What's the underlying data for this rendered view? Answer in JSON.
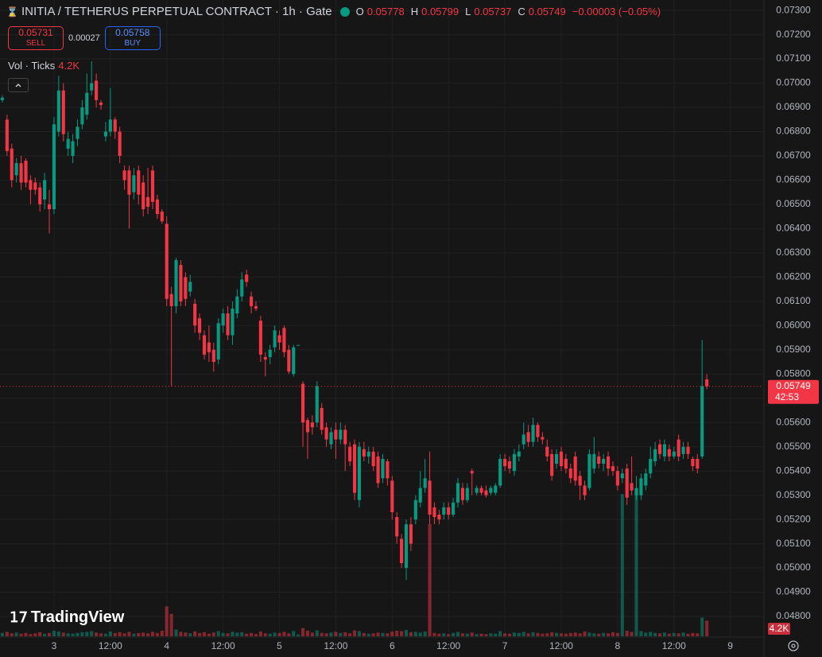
{
  "chart_data": {
    "type": "candlestick",
    "title": "INITIA / TETHERUS PERPETUAL CONTRACT · 1h · Gate",
    "ohlc_labels": [
      "O",
      "H",
      "L",
      "C"
    ],
    "change_label": "−0.00003 (−0.05%)",
    "sell_price": "0.05731",
    "sell_label": "SELL",
    "spread": "0.00027",
    "buy_price": "0.05758",
    "buy_label": "BUY",
    "volume_legend": "Vol · Ticks",
    "last_volume_label": "4.2K",
    "countdown": "42:53",
    "logo": "TradingView",
    "up_color": "#089981",
    "down_color": "#f23645",
    "grid": true,
    "x": [
      -11,
      -10,
      -9,
      -8,
      -7,
      -6,
      -5,
      -4,
      -3,
      -2,
      -1,
      0,
      1,
      2,
      3,
      4,
      5,
      6,
      7,
      8,
      9,
      10,
      11,
      12,
      13,
      14,
      15,
      16,
      17,
      18,
      19,
      20,
      21,
      22,
      23,
      24,
      25,
      26,
      27,
      28,
      29,
      30,
      31,
      32,
      33,
      34,
      35,
      36,
      37,
      38,
      39,
      40,
      41,
      42,
      43,
      44,
      45,
      46,
      47,
      48,
      49,
      50,
      51,
      52,
      53,
      54,
      55,
      56,
      57,
      58,
      59,
      60,
      61,
      62,
      63,
      64,
      65,
      66,
      67,
      68,
      69,
      70,
      71,
      72,
      73,
      74,
      75,
      76,
      77,
      78,
      79,
      80,
      81,
      82,
      83,
      84,
      85,
      86,
      87,
      88,
      89,
      90,
      91,
      92,
      93,
      94,
      95,
      96,
      97,
      98,
      99,
      100,
      101,
      102,
      103,
      104,
      105,
      106,
      107,
      108,
      109,
      110,
      111,
      112,
      113,
      114,
      115,
      116,
      117,
      118,
      119,
      120,
      121,
      122,
      123,
      124,
      125,
      126,
      127,
      128,
      129,
      130,
      131,
      132,
      133,
      134,
      135,
      136,
      137,
      138,
      139
    ],
    "open": [
      0.0693,
      0.0685,
      0.0673,
      0.0662,
      0.0667,
      0.0668,
      0.066,
      0.0659,
      0.0657,
      0.0652,
      0.065,
      0.0648,
      0.068,
      0.0697,
      0.0673,
      0.067,
      0.0677,
      0.0683,
      0.0687,
      0.0697,
      0.0701,
      0.0692,
      0.0678,
      0.068,
      0.0685,
      0.068,
      0.0664,
      0.0664,
      0.0655,
      0.0664,
      0.0659,
      0.0653,
      0.0664,
      0.0652,
      0.0647,
      0.0642,
      0.0613,
      0.0608,
      0.0625,
      0.062,
      0.0614,
      0.0609,
      0.0603,
      0.0596,
      0.0593,
      0.059,
      0.0586,
      0.06,
      0.0605,
      0.0596,
      0.0605,
      0.0612,
      0.0621,
      0.0612,
      0.0608,
      0.0602,
      0.0587,
      0.0587,
      0.0591,
      0.0596,
      0.0599,
      0.059,
      0.058,
      0.0592,
      0.0576,
      0.0561,
      0.056,
      0.056,
      0.0566,
      0.0558,
      0.0551,
      0.0557,
      0.0553,
      0.0557,
      0.055,
      0.0551,
      0.0528,
      0.0549,
      0.0546,
      0.0548,
      0.0546,
      0.0537,
      0.0544,
      0.0536,
      0.0521,
      0.0512,
      0.05,
      0.0518,
      0.052,
      0.0527,
      0.0533,
      0.0536,
      0.0525,
      0.0522,
      0.0522,
      0.0525,
      0.0522,
      0.0527,
      0.0533,
      0.0528,
      0.054,
      0.0531,
      0.0533,
      0.0532,
      0.0531,
      0.0531,
      0.0534,
      0.0545,
      0.0544,
      0.054,
      0.0546,
      0.0551,
      0.0556,
      0.0552,
      0.0559,
      0.0554,
      0.055,
      0.0547,
      0.0543,
      0.0548,
      0.0545,
      0.0541,
      0.0546,
      0.0538,
      0.0534,
      0.0533,
      0.0541,
      0.0546,
      0.0543,
      0.0546,
      0.0542,
      0.054,
      0.0537,
      0.0541,
      0.0535,
      0.053,
      0.053,
      0.0534,
      0.0539,
      0.0544,
      0.0551,
      0.0546,
      0.0549,
      0.0546,
      0.0553,
      0.0547,
      0.055,
      0.0545,
      0.0545,
      0.0546,
      0.05778
    ],
    "high": [
      0.0695,
      0.0687,
      0.0675,
      0.0669,
      0.067,
      0.0669,
      0.0662,
      0.0661,
      0.0659,
      0.0663,
      0.0656,
      0.0686,
      0.0703,
      0.07,
      0.068,
      0.0679,
      0.0685,
      0.0693,
      0.0704,
      0.0709,
      0.0704,
      0.0693,
      0.0684,
      0.0698,
      0.0686,
      0.0682,
      0.0666,
      0.0666,
      0.0665,
      0.0666,
      0.0662,
      0.0665,
      0.0666,
      0.0654,
      0.0648,
      0.0645,
      0.0616,
      0.0628,
      0.0627,
      0.0622,
      0.0621,
      0.0611,
      0.0605,
      0.0598,
      0.06,
      0.0593,
      0.0603,
      0.0607,
      0.0608,
      0.061,
      0.0615,
      0.0622,
      0.0623,
      0.0614,
      0.061,
      0.0604,
      0.0589,
      0.0592,
      0.06,
      0.0598,
      0.06,
      0.0592,
      0.0592,
      0.0592,
      0.0577,
      0.0562,
      0.0563,
      0.0577,
      0.0568,
      0.056,
      0.0558,
      0.056,
      0.056,
      0.0559,
      0.0552,
      0.0553,
      0.0552,
      0.0552,
      0.055,
      0.055,
      0.0548,
      0.0547,
      0.0545,
      0.0538,
      0.0523,
      0.0514,
      0.052,
      0.0521,
      0.053,
      0.054,
      0.0545,
      0.0548,
      0.0527,
      0.0524,
      0.0527,
      0.0527,
      0.0529,
      0.0537,
      0.0535,
      0.0535,
      0.0541,
      0.0534,
      0.0534,
      0.0534,
      0.0534,
      0.0535,
      0.0547,
      0.0547,
      0.0546,
      0.0549,
      0.0551,
      0.056,
      0.0559,
      0.0562,
      0.056,
      0.0556,
      0.0553,
      0.0549,
      0.0549,
      0.055,
      0.0547,
      0.0543,
      0.0548,
      0.054,
      0.0536,
      0.0549,
      0.0554,
      0.0548,
      0.0547,
      0.0548,
      0.0544,
      0.0542,
      0.0541,
      0.0543,
      0.0546,
      0.0538,
      0.0539,
      0.0541,
      0.055,
      0.0552,
      0.0553,
      0.0553,
      0.0551,
      0.055,
      0.0555,
      0.0552,
      0.0552,
      0.0546,
      0.0547,
      0.0594,
      0.05799
    ],
    "low": [
      0.0692,
      0.067,
      0.0657,
      0.0659,
      0.0656,
      0.0657,
      0.065,
      0.0654,
      0.0647,
      0.0648,
      0.0638,
      0.0646,
      0.0678,
      0.0676,
      0.067,
      0.0667,
      0.0674,
      0.0681,
      0.0685,
      0.0695,
      0.069,
      0.0689,
      0.0676,
      0.0678,
      0.0677,
      0.0667,
      0.0656,
      0.064,
      0.0652,
      0.065,
      0.0645,
      0.0646,
      0.0648,
      0.0644,
      0.0642,
      0.0608,
      0.0575,
      0.0605,
      0.0608,
      0.0608,
      0.0612,
      0.0597,
      0.0594,
      0.0586,
      0.0585,
      0.0581,
      0.0584,
      0.0597,
      0.0594,
      0.0592,
      0.0603,
      0.061,
      0.0616,
      0.0605,
      0.0606,
      0.0585,
      0.0579,
      0.0584,
      0.0589,
      0.059,
      0.0587,
      0.058,
      0.0579,
      0.0592,
      0.055,
      0.0545,
      0.0555,
      0.0558,
      0.0555,
      0.055,
      0.0549,
      0.0545,
      0.0551,
      0.054,
      0.0542,
      0.0528,
      0.0525,
      0.0544,
      0.0543,
      0.054,
      0.0533,
      0.0535,
      0.0534,
      0.052,
      0.051,
      0.05,
      0.0495,
      0.0507,
      0.0518,
      0.0525,
      0.0531,
      0.0518,
      0.0518,
      0.0518,
      0.052,
      0.052,
      0.0521,
      0.0525,
      0.0526,
      0.0527,
      0.053,
      0.053,
      0.053,
      0.0529,
      0.053,
      0.053,
      0.0533,
      0.054,
      0.0539,
      0.0538,
      0.0544,
      0.0549,
      0.055,
      0.055,
      0.0552,
      0.0551,
      0.0544,
      0.0536,
      0.0541,
      0.054,
      0.0539,
      0.0535,
      0.0534,
      0.0528,
      0.0528,
      0.0532,
      0.0539,
      0.0541,
      0.054,
      0.0538,
      0.0538,
      0.0532,
      0.0535,
      0.0526,
      0.053,
      0.0528,
      0.0528,
      0.0532,
      0.0537,
      0.0542,
      0.0545,
      0.0544,
      0.0544,
      0.0545,
      0.0544,
      0.0545,
      0.0545,
      0.054,
      0.0539,
      0.0545,
      0.05737
    ],
    "close": [
      0.0694,
      0.0672,
      0.066,
      0.0667,
      0.0659,
      0.0659,
      0.0656,
      0.0656,
      0.065,
      0.066,
      0.0648,
      0.0683,
      0.0697,
      0.0679,
      0.0677,
      0.0676,
      0.0682,
      0.069,
      0.0696,
      0.07,
      0.0693,
      0.0691,
      0.068,
      0.0685,
      0.068,
      0.067,
      0.066,
      0.0654,
      0.0662,
      0.0654,
      0.0648,
      0.0649,
      0.0651,
      0.0646,
      0.0643,
      0.0611,
      0.0608,
      0.0627,
      0.061,
      0.0611,
      0.0618,
      0.06,
      0.0597,
      0.0588,
      0.0589,
      0.0585,
      0.0601,
      0.0605,
      0.0596,
      0.0607,
      0.0612,
      0.0619,
      0.0618,
      0.0608,
      0.0607,
      0.0588,
      0.0586,
      0.059,
      0.0598,
      0.0593,
      0.0589,
      0.0581,
      0.0591,
      0.0592,
      0.056,
      0.0556,
      0.0558,
      0.0575,
      0.0557,
      0.0553,
      0.0556,
      0.0553,
      0.0557,
      0.0551,
      0.0544,
      0.0531,
      0.055,
      0.0546,
      0.0548,
      0.0542,
      0.0535,
      0.0545,
      0.0537,
      0.0523,
      0.0513,
      0.0502,
      0.0518,
      0.051,
      0.0528,
      0.0533,
      0.0537,
      0.0522,
      0.0521,
      0.052,
      0.0525,
      0.0522,
      0.0527,
      0.0535,
      0.0528,
      0.0533,
      0.0539,
      0.0533,
      0.0531,
      0.053,
      0.0533,
      0.0534,
      0.0545,
      0.0542,
      0.0541,
      0.0547,
      0.0548,
      0.0555,
      0.0552,
      0.0559,
      0.0554,
      0.0553,
      0.0546,
      0.0538,
      0.0547,
      0.0542,
      0.0541,
      0.0537,
      0.0536,
      0.0534,
      0.053,
      0.0547,
      0.0547,
      0.0543,
      0.0545,
      0.0541,
      0.054,
      0.0534,
      0.0539,
      0.0529,
      0.0532,
      0.0533,
      0.0537,
      0.0539,
      0.0545,
      0.0549,
      0.0547,
      0.0551,
      0.0546,
      0.0548,
      0.0546,
      0.055,
      0.0547,
      0.0542,
      0.0541,
      0.0575,
      0.05749
    ],
    "volume": [
      900,
      1200,
      800,
      1000,
      700,
      900,
      600,
      800,
      1100,
      700,
      900,
      1500,
      1300,
      1000,
      800,
      700,
      900,
      1100,
      1200,
      1400,
      1000,
      800,
      700,
      1300,
      900,
      1100,
      800,
      1200,
      700,
      900,
      1000,
      800,
      1200,
      900,
      1500,
      8000,
      6000,
      1800,
      1200,
      1000,
      800,
      1300,
      900,
      1100,
      700,
      1000,
      1400,
      900,
      800,
      1200,
      1000,
      1100,
      700,
      900,
      600,
      1300,
      800,
      700,
      1000,
      900,
      1200,
      800,
      1400,
      500,
      2200,
      1500,
      1000,
      1600,
      900,
      800,
      1000,
      1200,
      900,
      1100,
      800,
      1600,
      1400,
      900,
      700,
      800,
      1000,
      900,
      800,
      1300,
      1500,
      1400,
      1700,
      1100,
      1200,
      1000,
      1300,
      30000,
      900,
      700,
      800,
      600,
      900,
      1200,
      800,
      700,
      1000,
      600,
      700,
      600,
      800,
      700,
      1400,
      800,
      700,
      1000,
      900,
      1200,
      800,
      1100,
      900,
      700,
      800,
      1100,
      900,
      800,
      700,
      900,
      1000,
      800,
      1300,
      1000,
      800,
      700,
      900,
      800,
      1100,
      900,
      38000,
      1500,
      1200,
      38000,
      1400,
      1000,
      1200,
      900,
      800,
      1000,
      700,
      900,
      800,
      1000,
      700,
      900,
      800,
      5000,
      4200
    ],
    "xlim": [
      -11.5,
      151
    ],
    "xticks": [
      {
        "value": 0,
        "label": "3"
      },
      {
        "value": 12,
        "label": "12:00"
      },
      {
        "value": 24,
        "label": "4"
      },
      {
        "value": 36,
        "label": "12:00"
      },
      {
        "value": 48,
        "label": "5"
      },
      {
        "value": 60,
        "label": "12:00"
      },
      {
        "value": 72,
        "label": "6"
      },
      {
        "value": 84,
        "label": "12:00"
      },
      {
        "value": 96,
        "label": "7"
      },
      {
        "value": 108,
        "label": "12:00"
      },
      {
        "value": 120,
        "label": "8"
      },
      {
        "value": 132,
        "label": "12:00"
      },
      {
        "value": 144,
        "label": "9"
      }
    ],
    "ylim": [
      0.04718,
      0.07343
    ],
    "yticks": [
      {
        "value": 0.048,
        "label": "0.04800"
      },
      {
        "value": 0.049,
        "label": "0.04900"
      },
      {
        "value": 0.05,
        "label": "0.05000"
      },
      {
        "value": 0.051,
        "label": "0.05100"
      },
      {
        "value": 0.052,
        "label": "0.05200"
      },
      {
        "value": 0.053,
        "label": "0.05300"
      },
      {
        "value": 0.054,
        "label": "0.05400"
      },
      {
        "value": 0.055,
        "label": "0.05500"
      },
      {
        "value": 0.056,
        "label": "0.05600"
      },
      {
        "value": 0.057,
        "label": "0.05700"
      },
      {
        "value": 0.058,
        "label": "0.05800"
      },
      {
        "value": 0.059,
        "label": "0.05900"
      },
      {
        "value": 0.06,
        "label": "0.06000"
      },
      {
        "value": 0.061,
        "label": "0.06100"
      },
      {
        "value": 0.062,
        "label": "0.06200"
      },
      {
        "value": 0.063,
        "label": "0.06300"
      },
      {
        "value": 0.064,
        "label": "0.06400"
      },
      {
        "value": 0.065,
        "label": "0.06500"
      },
      {
        "value": 0.066,
        "label": "0.06600"
      },
      {
        "value": 0.067,
        "label": "0.06700"
      },
      {
        "value": 0.068,
        "label": "0.06800"
      },
      {
        "value": 0.069,
        "label": "0.06900"
      },
      {
        "value": 0.07,
        "label": "0.07000"
      },
      {
        "value": 0.071,
        "label": "0.07100"
      },
      {
        "value": 0.072,
        "label": "0.07200"
      },
      {
        "value": 0.073,
        "label": "0.07300"
      }
    ],
    "volume_lim": [
      0,
      170000
    ]
  }
}
